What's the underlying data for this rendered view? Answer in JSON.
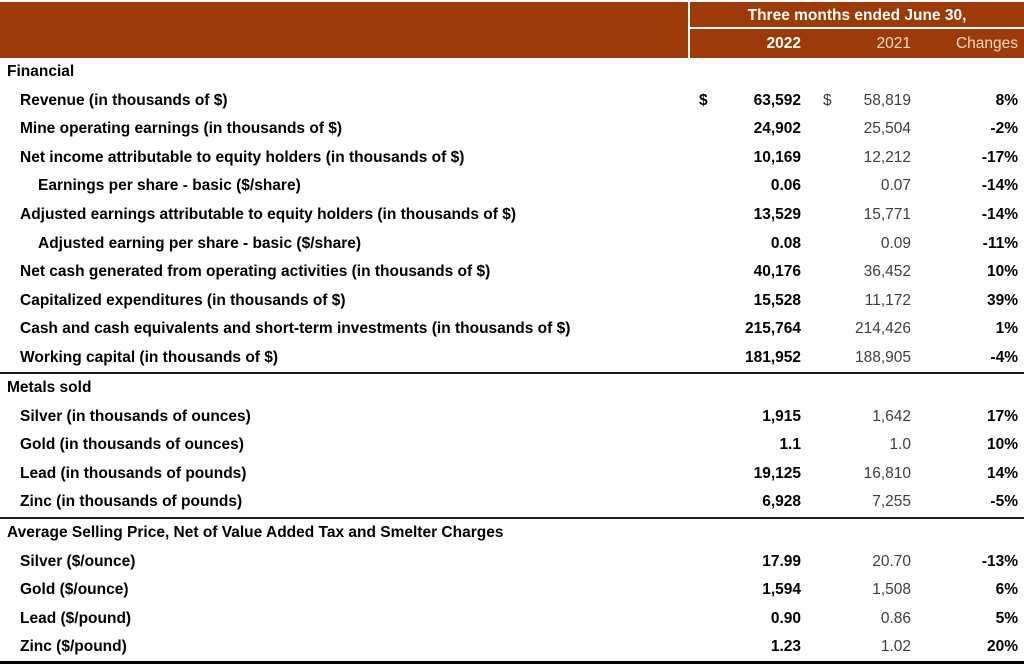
{
  "colors": {
    "header_bg": "#9D3B08",
    "header_primary_text": "#FFFFFF",
    "header_secondary_text": "#F3DCC6",
    "value_2021_text": "#3E3E3E",
    "divider": "#1A1A1A"
  },
  "header": {
    "title": "Three months ended June 30,",
    "columns": [
      "2022",
      "2021",
      "Changes"
    ]
  },
  "sections": [
    {
      "label": "Financial",
      "rows": [
        {
          "label": "Revenue (in thousands of $)",
          "indent": 1,
          "cur2022": "$",
          "v2022": "63,592",
          "cur2021": "$",
          "v2021": "58,819",
          "change": "8%"
        },
        {
          "label": "Mine operating earnings (in thousands of $)",
          "indent": 1,
          "cur2022": "",
          "v2022": "24,902",
          "cur2021": "",
          "v2021": "25,504",
          "change": "-2%"
        },
        {
          "label": "Net income attributable to equity holders (in thousands of $)",
          "indent": 1,
          "cur2022": "",
          "v2022": "10,169",
          "cur2021": "",
          "v2021": "12,212",
          "change": "-17%"
        },
        {
          "label": "Earnings per share - basic ($/share)",
          "indent": 2,
          "cur2022": "",
          "v2022": "0.06",
          "cur2021": "",
          "v2021": "0.07",
          "change": "-14%"
        },
        {
          "label": "Adjusted earnings attributable to equity holders (in thousands of $)",
          "indent": 1,
          "cur2022": "",
          "v2022": "13,529",
          "cur2021": "",
          "v2021": "15,771",
          "change": "-14%"
        },
        {
          "label": "Adjusted earning per share - basic ($/share)",
          "indent": 2,
          "cur2022": "",
          "v2022": "0.08",
          "cur2021": "",
          "v2021": "0.09",
          "change": "-11%"
        },
        {
          "label": "Net cash generated from operating activities (in thousands of $)",
          "indent": 1,
          "cur2022": "",
          "v2022": "40,176",
          "cur2021": "",
          "v2021": "36,452",
          "change": "10%"
        },
        {
          "label": "Capitalized expenditures (in thousands of $)",
          "indent": 1,
          "cur2022": "",
          "v2022": "15,528",
          "cur2021": "",
          "v2021": "11,172",
          "change": "39%"
        },
        {
          "label": "Cash and cash equivalents and short-term investments (in thousands of $)",
          "indent": 1,
          "cur2022": "",
          "v2022": "215,764",
          "cur2021": "",
          "v2021": "214,426",
          "change": "1%"
        },
        {
          "label": "Working capital (in thousands of $)",
          "indent": 1,
          "cur2022": "",
          "v2022": "181,952",
          "cur2021": "",
          "v2021": "188,905",
          "change": "-4%"
        }
      ]
    },
    {
      "label": "Metals sold",
      "rows": [
        {
          "label": "Silver (in thousands of ounces)",
          "indent": 1,
          "cur2022": "",
          "v2022": "1,915",
          "cur2021": "",
          "v2021": "1,642",
          "change": "17%"
        },
        {
          "label": "Gold (in thousands of ounces)",
          "indent": 1,
          "cur2022": "",
          "v2022": "1.1",
          "cur2021": "",
          "v2021": "1.0",
          "change": "10%"
        },
        {
          "label": "Lead (in thousands of pounds)",
          "indent": 1,
          "cur2022": "",
          "v2022": "19,125",
          "cur2021": "",
          "v2021": "16,810",
          "change": "14%"
        },
        {
          "label": "Zinc (in thousands of pounds)",
          "indent": 1,
          "cur2022": "",
          "v2022": "6,928",
          "cur2021": "",
          "v2021": "7,255",
          "change": "-5%"
        }
      ]
    },
    {
      "label": "Average Selling Price, Net of Value Added Tax and Smelter Charges",
      "rows": [
        {
          "label": "Silver ($/ounce)",
          "indent": 1,
          "cur2022": "",
          "v2022": "17.99",
          "cur2021": "",
          "v2021": "20.70",
          "change": "-13%"
        },
        {
          "label": "Gold ($/ounce)",
          "indent": 1,
          "cur2022": "",
          "v2022": "1,594",
          "cur2021": "",
          "v2021": "1,508",
          "change": "6%"
        },
        {
          "label": "Lead ($/pound)",
          "indent": 1,
          "cur2022": "",
          "v2022": "0.90",
          "cur2021": "",
          "v2021": "0.86",
          "change": "5%"
        },
        {
          "label": "Zinc ($/pound)",
          "indent": 1,
          "cur2022": "",
          "v2022": "1.23",
          "cur2021": "",
          "v2021": "1.02",
          "change": "20%"
        }
      ]
    }
  ]
}
